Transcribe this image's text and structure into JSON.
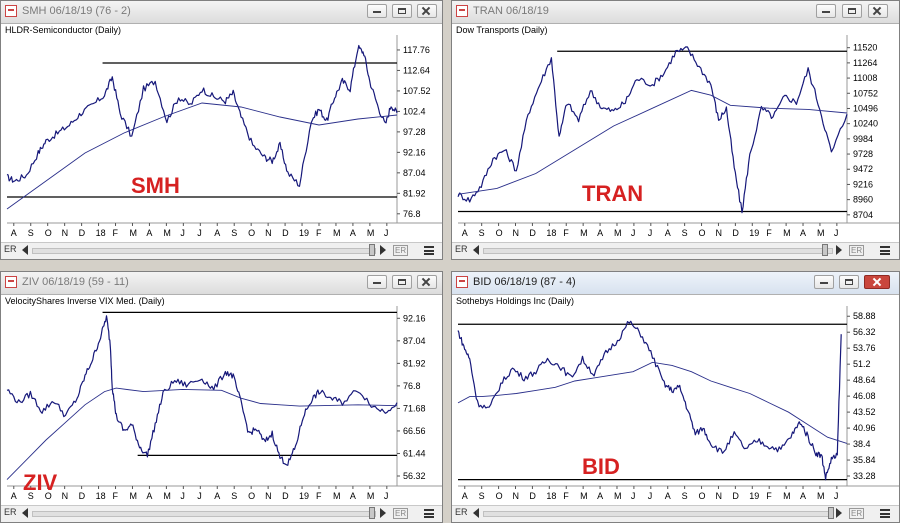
{
  "colors": {
    "price_line": "#16187a",
    "ma_line": "#2a2f8a",
    "annotation": "#d62121",
    "level_line": "#000000"
  },
  "icons": {
    "app": "chart-app-icon",
    "minimize": "minimize-icon",
    "maximize": "maximize-icon",
    "close": "close-icon",
    "scroll_left": "arrow-left-icon",
    "scroll_right": "arrow-right-icon",
    "menu": "menu-icon"
  },
  "windows": [
    {
      "title": "SMH 06/18/19 (76 - 2)",
      "subtitle": "HLDR-Semiconductor (Daily)",
      "active": false,
      "footer": {
        "left_label": "ER",
        "right_label": "ER"
      }
    },
    {
      "title": "TRAN 06/18/19",
      "subtitle": "Dow Transports (Daily)",
      "active": false,
      "footer": {
        "left_label": "ER",
        "right_label": "ER"
      }
    },
    {
      "title": "ZIV 06/18/19 (59 - 11)",
      "subtitle": "VelocityShares Inverse VIX Med. (Daily)",
      "active": false,
      "footer": {
        "left_label": "ER",
        "right_label": "ER"
      }
    },
    {
      "title": "BID 06/18/19 (87 - 4)",
      "subtitle": "Sothebys Holdings Inc (Daily)",
      "active": true,
      "footer": {
        "left_label": "ER",
        "right_label": "ER"
      }
    }
  ],
  "chart_data": [
    {
      "type": "line",
      "title": "SMH 06/18/19 (76 - 2)",
      "subtitle": "HLDR-Semiconductor (Daily)",
      "annotation": "SMH",
      "x_ticks": [
        "A",
        "S",
        "O",
        "N",
        "D",
        "18",
        "F",
        "M",
        "A",
        "M",
        "J",
        "J",
        "A",
        "S",
        "O",
        "N",
        "D",
        "19",
        "F",
        "M",
        "A",
        "M",
        "J"
      ],
      "y_ticks": [
        76.8,
        81.92,
        87.04,
        92.16,
        97.28,
        102.4,
        107.52,
        112.64,
        117.76
      ],
      "ylim": [
        75.0,
        121.0
      ],
      "h_levels": [
        {
          "value": 114.5,
          "from": 0.245
        },
        {
          "value": 81.0,
          "from": 0.0
        }
      ],
      "series": [
        {
          "role": "price",
          "x": [
            0.0,
            0.02,
            0.05,
            0.08,
            0.1,
            0.13,
            0.16,
            0.19,
            0.22,
            0.25,
            0.27,
            0.29,
            0.32,
            0.35,
            0.38,
            0.41,
            0.44,
            0.47,
            0.5,
            0.53,
            0.56,
            0.58,
            0.6,
            0.63,
            0.66,
            0.68,
            0.7,
            0.72,
            0.75,
            0.78,
            0.8,
            0.82,
            0.84,
            0.86,
            0.88,
            0.9,
            0.915,
            0.93,
            0.95,
            0.97,
            0.985,
            1.0
          ],
          "y": [
            86.0,
            85.0,
            86.5,
            92.0,
            95.0,
            97.0,
            99.0,
            102.0,
            104.0,
            106.5,
            111.0,
            102.0,
            96.0,
            108.0,
            110.0,
            100.0,
            106.0,
            104.0,
            108.0,
            106.0,
            105.0,
            107.0,
            101.0,
            94.0,
            91.0,
            90.0,
            94.0,
            87.0,
            84.0,
            100.0,
            103.0,
            100.0,
            106.0,
            110.0,
            108.0,
            118.5,
            117.0,
            110.0,
            104.0,
            99.0,
            104.0,
            102.0
          ]
        },
        {
          "role": "ma",
          "x": [
            0.0,
            0.1,
            0.2,
            0.3,
            0.4,
            0.5,
            0.6,
            0.7,
            0.8,
            0.9,
            1.0
          ],
          "y": [
            78.0,
            85.0,
            92.0,
            97.0,
            101.0,
            104.5,
            103.5,
            101.0,
            99.0,
            100.5,
            101.5
          ]
        }
      ]
    },
    {
      "type": "line",
      "title": "TRAN 06/18/19",
      "subtitle": "Dow Transports (Daily)",
      "annotation": "TRAN",
      "x_ticks": [
        "A",
        "S",
        "O",
        "N",
        "D",
        "18",
        "F",
        "M",
        "A",
        "M",
        "J",
        "J",
        "A",
        "S",
        "O",
        "N",
        "D",
        "19",
        "F",
        "M",
        "A",
        "M",
        "J"
      ],
      "y_ticks": [
        8704,
        8960,
        9216,
        9472,
        9728,
        9984,
        10240,
        10496,
        10752,
        11008,
        11264,
        11520
      ],
      "ylim": [
        8600,
        11700
      ],
      "h_levels": [
        {
          "value": 11460,
          "from": 0.255
        },
        {
          "value": 8760,
          "from": 0.0
        }
      ],
      "series": [
        {
          "role": "price",
          "x": [
            0.0,
            0.03,
            0.06,
            0.09,
            0.12,
            0.15,
            0.18,
            0.21,
            0.24,
            0.26,
            0.28,
            0.31,
            0.34,
            0.37,
            0.4,
            0.43,
            0.46,
            0.5,
            0.53,
            0.56,
            0.59,
            0.62,
            0.65,
            0.67,
            0.69,
            0.71,
            0.73,
            0.75,
            0.78,
            0.81,
            0.84,
            0.87,
            0.9,
            0.93,
            0.96,
            1.0
          ],
          "y": [
            9050,
            8950,
            9200,
            9650,
            9800,
            9450,
            10400,
            10900,
            11350,
            10000,
            10600,
            10300,
            10800,
            10500,
            10450,
            10600,
            11000,
            10900,
            11100,
            11450,
            11500,
            11200,
            10900,
            10300,
            10500,
            9500,
            8750,
            9700,
            10500,
            10350,
            10700,
            10600,
            11150,
            10500,
            9750,
            10400
          ]
        },
        {
          "role": "ma",
          "x": [
            0.0,
            0.1,
            0.2,
            0.3,
            0.4,
            0.5,
            0.6,
            0.65,
            0.7,
            0.8,
            0.9,
            1.0
          ],
          "y": [
            9050,
            9150,
            9400,
            9800,
            10200,
            10500,
            10800,
            10720,
            10550,
            10500,
            10480,
            10420
          ]
        }
      ]
    },
    {
      "type": "line",
      "title": "ZIV 06/18/19 (59 - 11)",
      "subtitle": "VelocityShares Inverse VIX Med. (Daily)",
      "annotation": "ZIV",
      "x_ticks": [
        "A",
        "S",
        "O",
        "N",
        "D",
        "18",
        "F",
        "M",
        "A",
        "M",
        "J",
        "J",
        "A",
        "S",
        "O",
        "N",
        "D",
        "19",
        "F",
        "M",
        "A",
        "M",
        "J"
      ],
      "y_ticks": [
        56.32,
        61.44,
        66.56,
        71.68,
        76.8,
        81.92,
        87.04,
        92.16
      ],
      "ylim": [
        54.5,
        94.5
      ],
      "h_levels": [
        {
          "value": 93.5,
          "from": 0.245
        },
        {
          "value": 61.0,
          "from": 0.335
        }
      ],
      "series": [
        {
          "role": "price",
          "x": [
            0.0,
            0.03,
            0.06,
            0.09,
            0.12,
            0.15,
            0.18,
            0.2,
            0.22,
            0.24,
            0.255,
            0.265,
            0.27,
            0.28,
            0.3,
            0.32,
            0.34,
            0.36,
            0.38,
            0.4,
            0.43,
            0.46,
            0.5,
            0.53,
            0.56,
            0.58,
            0.6,
            0.62,
            0.64,
            0.66,
            0.68,
            0.7,
            0.72,
            0.74,
            0.76,
            0.78,
            0.8,
            0.83,
            0.86,
            0.9,
            0.94,
            0.97,
            1.0
          ],
          "y": [
            76.0,
            73.0,
            75.0,
            71.0,
            73.5,
            70.0,
            74.0,
            79.0,
            83.0,
            88.0,
            92.5,
            86.0,
            76.5,
            70.0,
            66.5,
            68.0,
            63.0,
            61.0,
            68.0,
            75.0,
            78.0,
            77.0,
            78.5,
            76.0,
            80.0,
            79.0,
            73.0,
            66.0,
            67.0,
            64.0,
            66.0,
            60.5,
            59.0,
            63.0,
            70.0,
            73.5,
            75.5,
            74.0,
            73.0,
            76.0,
            72.0,
            71.0,
            73.0
          ]
        },
        {
          "role": "ma",
          "x": [
            0.0,
            0.05,
            0.1,
            0.15,
            0.2,
            0.25,
            0.28,
            0.35,
            0.45,
            0.55,
            0.6,
            0.65,
            0.7,
            0.75,
            0.8,
            0.9,
            1.0
          ],
          "y": [
            55.5,
            60.0,
            64.5,
            68.5,
            72.5,
            75.5,
            76.3,
            75.5,
            76.0,
            75.8,
            74.0,
            72.8,
            72.5,
            72.2,
            72.3,
            72.5,
            72.3
          ]
        }
      ]
    },
    {
      "type": "line",
      "title": "BID 06/18/19 (87 - 4)",
      "subtitle": "Sothebys Holdings Inc (Daily)",
      "annotation": "BID",
      "x_ticks": [
        "A",
        "S",
        "O",
        "N",
        "D",
        "18",
        "F",
        "M",
        "A",
        "M",
        "J",
        "J",
        "A",
        "S",
        "O",
        "N",
        "D",
        "19",
        "F",
        "M",
        "A",
        "M",
        "J"
      ],
      "y_ticks": [
        33.28,
        35.84,
        38.4,
        40.96,
        43.52,
        46.08,
        48.64,
        51.2,
        53.76,
        56.32,
        58.88
      ],
      "ylim": [
        32.0,
        60.2
      ],
      "h_levels": [
        {
          "value": 57.6,
          "from": 0.0
        },
        {
          "value": 32.7,
          "from": 0.0
        }
      ],
      "series": [
        {
          "role": "price",
          "x": [
            0.0,
            0.015,
            0.03,
            0.05,
            0.08,
            0.11,
            0.14,
            0.17,
            0.2,
            0.23,
            0.26,
            0.29,
            0.32,
            0.35,
            0.38,
            0.41,
            0.44,
            0.47,
            0.5,
            0.53,
            0.55,
            0.57,
            0.59,
            0.61,
            0.63,
            0.65,
            0.68,
            0.71,
            0.74,
            0.77,
            0.8,
            0.83,
            0.86,
            0.88,
            0.9,
            0.92,
            0.935,
            0.945,
            0.96,
            0.975,
            0.985
          ],
          "y": [
            56.5,
            54.0,
            52.0,
            45.0,
            44.0,
            48.0,
            50.5,
            49.0,
            50.0,
            52.0,
            51.0,
            49.0,
            52.0,
            49.5,
            53.0,
            55.0,
            58.0,
            56.0,
            52.5,
            48.0,
            47.0,
            47.5,
            44.0,
            40.0,
            41.0,
            38.5,
            37.0,
            40.0,
            37.5,
            39.0,
            38.0,
            37.5,
            40.0,
            42.0,
            39.5,
            37.0,
            36.5,
            33.0,
            36.0,
            36.5,
            56.0
          ]
        },
        {
          "role": "ma",
          "x": [
            0.0,
            0.03,
            0.06,
            0.1,
            0.15,
            0.2,
            0.25,
            0.3,
            0.35,
            0.4,
            0.45,
            0.5,
            0.55,
            0.6,
            0.65,
            0.7,
            0.75,
            0.8,
            0.85,
            0.9,
            0.95,
            1.0
          ],
          "y": [
            45.0,
            46.0,
            46.0,
            46.2,
            46.5,
            47.0,
            47.5,
            48.5,
            49.0,
            49.5,
            50.0,
            51.5,
            51.0,
            50.0,
            48.5,
            47.5,
            46.5,
            45.0,
            43.5,
            41.5,
            39.5,
            38.5
          ]
        }
      ]
    }
  ]
}
